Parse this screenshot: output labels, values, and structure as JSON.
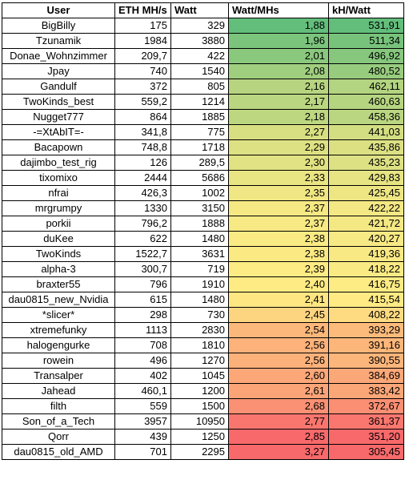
{
  "headers": {
    "user": "User",
    "eth": "ETH MH/s",
    "watt": "Watt",
    "watt_per_mhs": "Watt/MHs",
    "kh_per_watt": "kH/Watt"
  },
  "colors": {
    "scale_low": "#63be7b",
    "scale_mid": "#ffeb84",
    "scale_high": "#f8696b"
  },
  "rows": [
    {
      "user": "BigBilly",
      "eth": "175",
      "watt": "329",
      "watt_per_mhs": "1,88",
      "kh_per_watt": "531,91",
      "watt_color": "#63be7b",
      "kh_color": "#63be7b"
    },
    {
      "user": "Tzunamik",
      "eth": "1984",
      "watt": "3880",
      "watt_per_mhs": "1,96",
      "kh_per_watt": "511,34",
      "watt_color": "#7bc47c",
      "kh_color": "#78c37c"
    },
    {
      "user": "Donae_Wohnzimmer",
      "eth": "209,7",
      "watt": "422",
      "watt_per_mhs": "2,01",
      "kh_per_watt": "496,92",
      "watt_color": "#8ac87d",
      "kh_color": "#86c77d"
    },
    {
      "user": "Jpay",
      "eth": "740",
      "watt": "1540",
      "watt_per_mhs": "2,08",
      "kh_per_watt": "480,52",
      "watt_color": "#9fce7f",
      "kh_color": "#97cc7e"
    },
    {
      "user": "Gandulf",
      "eth": "372",
      "watt": "805",
      "watt_per_mhs": "2,16",
      "kh_per_watt": "462,11",
      "watt_color": "#b7d580",
      "kh_color": "#b3d480"
    },
    {
      "user": "TwoKinds_best",
      "eth": "559,2",
      "watt": "1214",
      "watt_per_mhs": "2,17",
      "kh_per_watt": "460,63",
      "watt_color": "#bad680",
      "kh_color": "#b5d580"
    },
    {
      "user": "Nugget777",
      "eth": "864",
      "watt": "1885",
      "watt_per_mhs": "2,18",
      "kh_per_watt": "458,36",
      "watt_color": "#bdd781",
      "kh_color": "#bad680"
    },
    {
      "user": "-=XtAbIT=-",
      "eth": "341,8",
      "watt": "775",
      "watt_per_mhs": "2,27",
      "kh_per_watt": "441,03",
      "watt_color": "#d8df82",
      "kh_color": "#d3de82"
    },
    {
      "user": "Bacapown",
      "eth": "748,8",
      "watt": "1718",
      "watt_per_mhs": "2,29",
      "kh_per_watt": "435,86",
      "watt_color": "#dee183",
      "kh_color": "#dce083"
    },
    {
      "user": "dajimbo_test_rig",
      "eth": "126",
      "watt": "289,5",
      "watt_per_mhs": "2,30",
      "kh_per_watt": "435,23",
      "watt_color": "#e1e283",
      "kh_color": "#dde183"
    },
    {
      "user": "tixomixo",
      "eth": "2444",
      "watt": "5686",
      "watt_per_mhs": "2,33",
      "kh_per_watt": "429,83",
      "watt_color": "#eae583",
      "kh_color": "#e6e483"
    },
    {
      "user": "nfrai",
      "eth": "426,3",
      "watt": "1002",
      "watt_per_mhs": "2,35",
      "kh_per_watt": "425,45",
      "watt_color": "#f0e784",
      "kh_color": "#ede683"
    },
    {
      "user": "mrgrumpy",
      "eth": "1330",
      "watt": "3150",
      "watt_per_mhs": "2,37",
      "kh_per_watt": "422,22",
      "watt_color": "#f6e984",
      "kh_color": "#f3e884"
    },
    {
      "user": "porkii",
      "eth": "796,2",
      "watt": "1888",
      "watt_per_mhs": "2,37",
      "kh_per_watt": "421,72",
      "watt_color": "#f7e984",
      "kh_color": "#f4e884"
    },
    {
      "user": "duKee",
      "eth": "622",
      "watt": "1480",
      "watt_per_mhs": "2,38",
      "kh_per_watt": "420,27",
      "watt_color": "#f9ea84",
      "kh_color": "#f7e984"
    },
    {
      "user": "TwoKinds",
      "eth": "1522,7",
      "watt": "3631",
      "watt_per_mhs": "2,38",
      "kh_per_watt": "419,36",
      "watt_color": "#fbea84",
      "kh_color": "#f8e984"
    },
    {
      "user": "alpha-3",
      "eth": "300,7",
      "watt": "719",
      "watt_per_mhs": "2,39",
      "kh_per_watt": "418,22",
      "watt_color": "#fdeb84",
      "kh_color": "#faea84"
    },
    {
      "user": "braxter55",
      "eth": "796",
      "watt": "1910",
      "watt_per_mhs": "2,40",
      "kh_per_watt": "416,75",
      "watt_color": "#ffeb84",
      "kh_color": "#fdeb84"
    },
    {
      "user": "dau0815_new_Nvidia",
      "eth": "615",
      "watt": "1480",
      "watt_per_mhs": "2,41",
      "kh_per_watt": "415,54",
      "watt_color": "#fee683",
      "kh_color": "#ffea84"
    },
    {
      "user": "*slicer*",
      "eth": "298",
      "watt": "730",
      "watt_per_mhs": "2,45",
      "kh_per_watt": "408,22",
      "watt_color": "#fdd480",
      "kh_color": "#fedb81"
    },
    {
      "user": "xtremefunky",
      "eth": "1113",
      "watt": "2830",
      "watt_per_mhs": "2,54",
      "kh_per_watt": "393,29",
      "watt_color": "#fcb77b",
      "kh_color": "#fcbb7b"
    },
    {
      "user": "halogengurke",
      "eth": "708",
      "watt": "1810",
      "watt_per_mhs": "2,56",
      "kh_per_watt": "391,16",
      "watt_color": "#fcb27a",
      "kh_color": "#fcb67a"
    },
    {
      "user": "rowein",
      "eth": "496",
      "watt": "1270",
      "watt_per_mhs": "2,56",
      "kh_per_watt": "390,55",
      "watt_color": "#fcb17a",
      "kh_color": "#fcb57a"
    },
    {
      "user": "Transalper",
      "eth": "402",
      "watt": "1045",
      "watt_per_mhs": "2,60",
      "kh_per_watt": "384,69",
      "watt_color": "#fba778",
      "kh_color": "#fba878"
    },
    {
      "user": "Jahead",
      "eth": "460,1",
      "watt": "1200",
      "watt_per_mhs": "2,61",
      "kh_per_watt": "383,42",
      "watt_color": "#fba478",
      "kh_color": "#fba677"
    },
    {
      "user": "filth",
      "eth": "559",
      "watt": "1500",
      "watt_per_mhs": "2,68",
      "kh_per_watt": "372,67",
      "watt_color": "#fa9074",
      "kh_color": "#fa8f73"
    },
    {
      "user": "Son_of_a_Tech",
      "eth": "3957",
      "watt": "10950",
      "watt_per_mhs": "2,77",
      "kh_per_watt": "361,37",
      "watt_color": "#f9766f",
      "kh_color": "#f9776f"
    },
    {
      "user": "Qorr",
      "eth": "439",
      "watt": "1250",
      "watt_per_mhs": "2,85",
      "kh_per_watt": "351,20",
      "watt_color": "#f8696b",
      "kh_color": "#f8696b"
    },
    {
      "user": "dau0815_old_AMD",
      "eth": "701",
      "watt": "2295",
      "watt_per_mhs": "3,27",
      "kh_per_watt": "305,45",
      "watt_color": "#f8696b",
      "kh_color": "#f8696b"
    }
  ]
}
